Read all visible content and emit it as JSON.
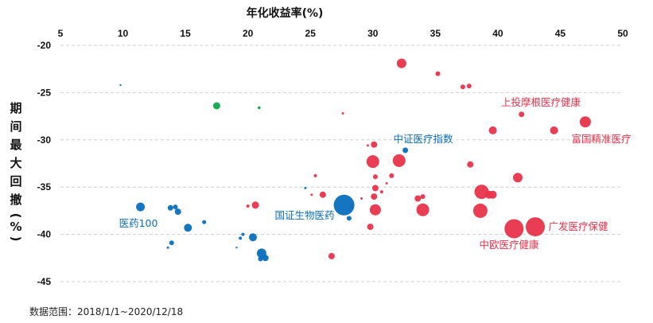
{
  "chart_data": {
    "type": "scatter",
    "title": "",
    "xlabel": "年化收益率(%)",
    "ylabel": "期间最大回撤(%)",
    "xlim": [
      5,
      50
    ],
    "ylim": [
      -45,
      -20
    ],
    "xticks": [
      5,
      10,
      15,
      20,
      25,
      30,
      35,
      40,
      45,
      50
    ],
    "yticks": [
      -20,
      -25,
      -30,
      -35,
      -40,
      -45
    ],
    "grid": "horizontal-dashed",
    "x_axis_position": "top",
    "legend": null,
    "colors": {
      "red": "#e8334a",
      "blue": "#0a6ebd",
      "green": "#10a84a"
    },
    "series": [
      {
        "name": "red",
        "color": "#e8334a",
        "points": [
          {
            "x": 32.3,
            "y": -21.9,
            "r": 6
          },
          {
            "x": 35.2,
            "y": -23.0,
            "r": 3
          },
          {
            "x": 37.2,
            "y": -24.4,
            "r": 3
          },
          {
            "x": 37.7,
            "y": -24.3,
            "r": 3
          },
          {
            "x": 41.9,
            "y": -27.3,
            "r": 3.5
          },
          {
            "x": 39.6,
            "y": -29.0,
            "r": 5
          },
          {
            "x": 44.5,
            "y": -29.0,
            "r": 5
          },
          {
            "x": 47.0,
            "y": -28.1,
            "r": 7
          },
          {
            "x": 27.6,
            "y": -27.2,
            "r": 1.5
          },
          {
            "x": 29.6,
            "y": -30.6,
            "r": 1.5
          },
          {
            "x": 30.1,
            "y": -30.5,
            "r": 4
          },
          {
            "x": 30.0,
            "y": -32.3,
            "r": 8
          },
          {
            "x": 32.1,
            "y": -32.2,
            "r": 8
          },
          {
            "x": 37.8,
            "y": -32.6,
            "r": 4
          },
          {
            "x": 25.4,
            "y": -33.8,
            "r": 2
          },
          {
            "x": 30.2,
            "y": -33.9,
            "r": 3
          },
          {
            "x": 31.5,
            "y": -33.8,
            "r": 3
          },
          {
            "x": 31.1,
            "y": -34.6,
            "r": 1.5
          },
          {
            "x": 41.6,
            "y": -34.0,
            "r": 6
          },
          {
            "x": 30.2,
            "y": -35.1,
            "r": 4
          },
          {
            "x": 30.7,
            "y": -35.5,
            "r": 2
          },
          {
            "x": 26.0,
            "y": -35.8,
            "r": 4
          },
          {
            "x": 25.1,
            "y": -35.8,
            "r": 1.5
          },
          {
            "x": 30.1,
            "y": -36.0,
            "r": 4
          },
          {
            "x": 33.6,
            "y": -36.2,
            "r": 4
          },
          {
            "x": 34.0,
            "y": -36.0,
            "r": 3
          },
          {
            "x": 38.7,
            "y": -35.5,
            "r": 9
          },
          {
            "x": 39.3,
            "y": -35.8,
            "r": 5
          },
          {
            "x": 39.6,
            "y": -35.8,
            "r": 5
          },
          {
            "x": 29.1,
            "y": -36.2,
            "r": 1.5
          },
          {
            "x": 20.6,
            "y": -36.9,
            "r": 4.5
          },
          {
            "x": 20.0,
            "y": -37.0,
            "r": 2
          },
          {
            "x": 30.2,
            "y": -37.4,
            "r": 7
          },
          {
            "x": 34.0,
            "y": -37.4,
            "r": 8
          },
          {
            "x": 38.6,
            "y": -37.5,
            "r": 9
          },
          {
            "x": 28.3,
            "y": -37.1,
            "r": 2
          },
          {
            "x": 29.8,
            "y": -39.2,
            "r": 4
          },
          {
            "x": 41.3,
            "y": -39.4,
            "r": 12
          },
          {
            "x": 43.0,
            "y": -39.2,
            "r": 12
          },
          {
            "x": 26.7,
            "y": -42.3,
            "r": 4
          }
        ]
      },
      {
        "name": "blue",
        "color": "#0a6ebd",
        "points": [
          {
            "x": 9.8,
            "y": -24.2,
            "r": 1.2
          },
          {
            "x": 32.6,
            "y": -31.1,
            "r": 3.5
          },
          {
            "x": 24.6,
            "y": -35.1,
            "r": 1.5
          },
          {
            "x": 27.7,
            "y": -36.9,
            "r": 13
          },
          {
            "x": 28.1,
            "y": -38.3,
            "r": 3
          },
          {
            "x": 11.4,
            "y": -37.1,
            "r": 5.5
          },
          {
            "x": 13.8,
            "y": -37.2,
            "r": 3.5
          },
          {
            "x": 14.2,
            "y": -37.1,
            "r": 3
          },
          {
            "x": 14.4,
            "y": -37.6,
            "r": 4
          },
          {
            "x": 16.5,
            "y": -38.7,
            "r": 2.5
          },
          {
            "x": 15.2,
            "y": -39.3,
            "r": 5
          },
          {
            "x": 13.9,
            "y": -40.9,
            "r": 3
          },
          {
            "x": 13.6,
            "y": -41.4,
            "r": 1.5
          },
          {
            "x": 19.6,
            "y": -40.0,
            "r": 2
          },
          {
            "x": 19.4,
            "y": -40.4,
            "r": 2
          },
          {
            "x": 20.4,
            "y": -40.3,
            "r": 5
          },
          {
            "x": 19.1,
            "y": -41.4,
            "r": 1.2
          },
          {
            "x": 21.1,
            "y": -42.0,
            "r": 6
          },
          {
            "x": 21.4,
            "y": -42.5,
            "r": 4
          },
          {
            "x": 21.0,
            "y": -42.6,
            "r": 3
          }
        ]
      },
      {
        "name": "green",
        "color": "#10a84a",
        "points": [
          {
            "x": 17.5,
            "y": -26.4,
            "r": 4.5
          },
          {
            "x": 20.9,
            "y": -26.6,
            "r": 1.8
          }
        ]
      }
    ],
    "annotations": [
      {
        "text": "上投摩根医疗健康",
        "x": 41.9,
        "y": -27.3,
        "color": "#e8334a"
      },
      {
        "text": "富国精准医疗",
        "x": 47.0,
        "y": -28.1,
        "color": "#e8334a"
      },
      {
        "text": "中证医疗指数",
        "x": 32.6,
        "y": -31.1,
        "color": "#0a6ebd"
      },
      {
        "text": "国证生物医药",
        "x": 27.7,
        "y": -36.9,
        "color": "#0a6ebd"
      },
      {
        "text": "医药100",
        "x": 11.4,
        "y": -37.1,
        "color": "#0a6ebd"
      },
      {
        "text": "中欧医疗健康",
        "x": 41.3,
        "y": -39.4,
        "color": "#e8334a"
      },
      {
        "text": "广发医疗保健",
        "x": 43.0,
        "y": -39.2,
        "color": "#e8334a"
      }
    ]
  },
  "labels": {
    "x_title": "年化收益率(%)",
    "y_title_chars": [
      "期",
      "间",
      "最",
      "大",
      "回",
      "撤",
      "(",
      "%",
      ")"
    ],
    "footer": "数据范围：2018/1/1~2020/12/18",
    "annotations": [
      "上投摩根医疗健康",
      "富国精准医疗",
      "中证医疗指数",
      "国证生物医药",
      "医药100",
      "中欧医疗健康",
      "广发医疗保健"
    ],
    "x_ticks": [
      "5",
      "10",
      "15",
      "20",
      "25",
      "30",
      "35",
      "40",
      "45",
      "50"
    ],
    "y_ticks": [
      "-20",
      "-25",
      "-30",
      "-35",
      "-40",
      "-45"
    ]
  }
}
